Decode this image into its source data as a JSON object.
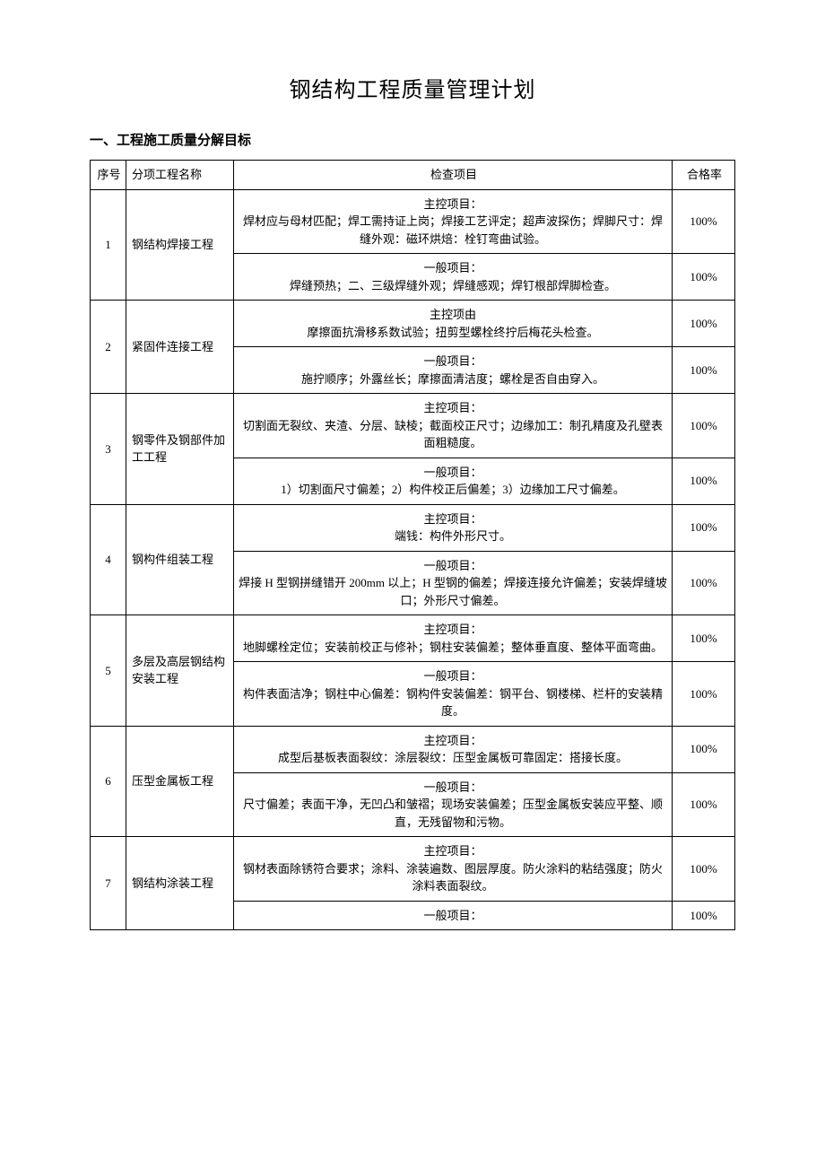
{
  "title": "钢结构工程质量管理计划",
  "section_heading": "一、工程施工质量分解目标",
  "headers": {
    "no": "序号",
    "name": "分项工程名称",
    "item": "检查项目",
    "rate": "合格率"
  },
  "rows": [
    {
      "no": "1",
      "name": "钢结构焊接工程",
      "items": [
        {
          "text": "主控项目：\n焊材应与母材匹配；焊工需持证上岗；焊接工艺评定；超声波探伤；焊脚尺寸：焊缝外观：磁环烘焙：栓钉弯曲试验。",
          "rate": "100%"
        },
        {
          "text": "一般项目：\n焊缝预热；二、三级焊缝外观；焊缝感观；焊钉根部焊脚检查。",
          "rate": "100%"
        }
      ]
    },
    {
      "no": "2",
      "name": "紧固件连接工程",
      "items": [
        {
          "text": "主控项由\n摩擦面抗滑移系数试验；扭剪型螺栓终拧后梅花头检查。",
          "rate": "100%"
        },
        {
          "text": "一般项目：\n施拧顺序；外露丝长；摩擦面清洁度；螺栓是否自由穿入。",
          "rate": "100%"
        }
      ]
    },
    {
      "no": "3",
      "name": "钢零件及钢部件加工工程",
      "items": [
        {
          "text": "主控项目：\n切割面无裂纹、夹渣、分层、缺棱；截面校正尺寸；边缘加工：制孔精度及孔壁表面粗糙度。",
          "rate": "100%"
        },
        {
          "text": "一般项目：\n1）切割面尺寸偏差；2）构件校正后偏差；3）边缘加工尺寸偏差。",
          "rate": "100%"
        }
      ]
    },
    {
      "no": "4",
      "name": "钢构件组装工程",
      "items": [
        {
          "text": "主控项目：\n端钱：构件外形尺寸。",
          "rate": "100%"
        },
        {
          "text": "一般项目：\n焊接 H 型钢拼缝错开 200mm 以上；H 型钢的偏差；焊接连接允许偏差；安装焊缝坡口；外形尺寸偏差。",
          "rate": "100%"
        }
      ]
    },
    {
      "no": "5",
      "name": "多层及高层钢结构安装工程",
      "items": [
        {
          "text": "主控项目：\n地脚螺栓定位；安装前校正与修补；钢柱安装偏差；整体垂直度、整体平面弯曲。",
          "rate": "100%"
        },
        {
          "text": "一般项目：\n构件表面洁净；钢柱中心偏差：钢构件安装偏差：钢平台、钢楼梯、栏杆的安装精度。",
          "rate": "100%"
        }
      ]
    },
    {
      "no": "6",
      "name": "压型金属板工程",
      "items": [
        {
          "text": "主控项目：\n成型后基板表面裂纹：涂层裂纹：压型金属板可靠固定：搭接长度。",
          "rate": "100%"
        },
        {
          "text": "一般项目：\n尺寸偏差；表面干净，无凹凸和皱褶；现场安装偏差；压型金属板安装应平整、顺直，无残留物和污物。",
          "rate": "100%"
        }
      ]
    },
    {
      "no": "7",
      "name": "钢结构涂装工程",
      "items": [
        {
          "text": "主控项目：\n钢材表面除锈符合要求；涂料、涂装遍数、图层厚度。防火涂料的粘结强度；防火涂料表面裂纹。",
          "rate": "100%"
        },
        {
          "text": "一般项目：",
          "rate": "100%"
        }
      ]
    }
  ]
}
